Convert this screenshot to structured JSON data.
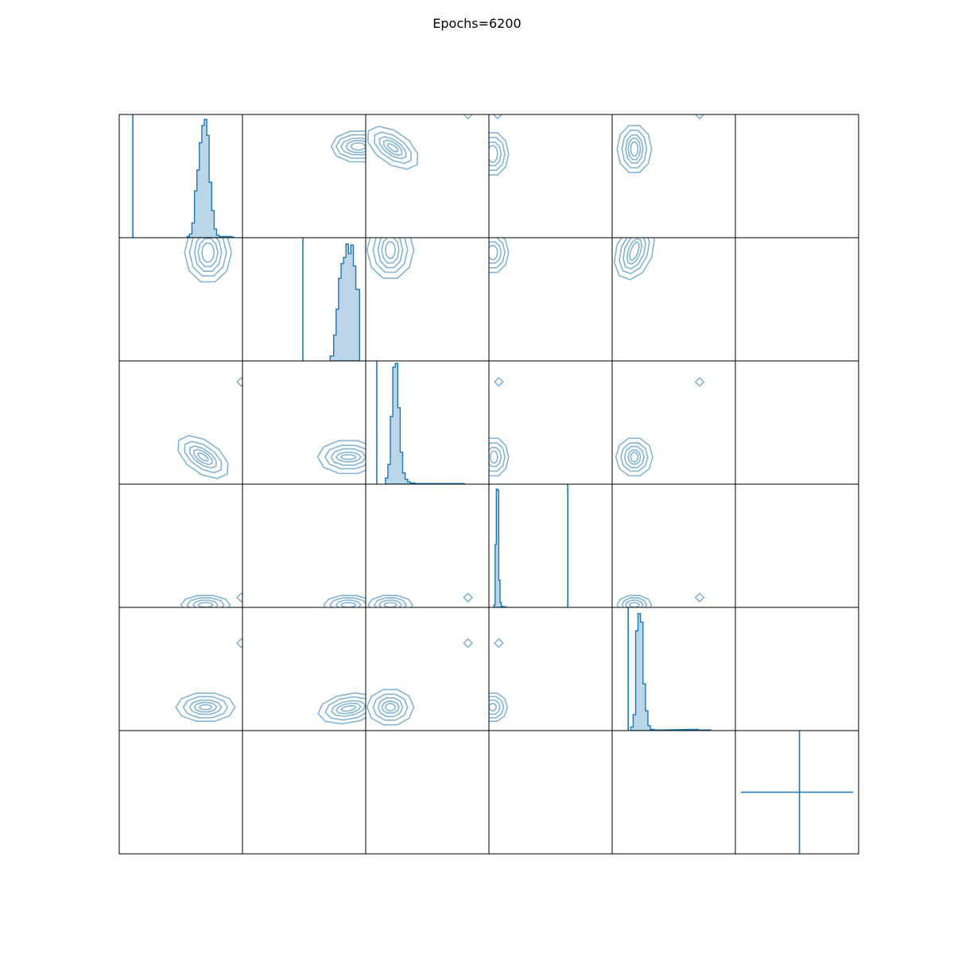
{
  "chart_data": {
    "type": "corner",
    "title": "Epochs=6200",
    "grid": false,
    "n_params": 6,
    "colors": {
      "line": "#1f77b4",
      "fill": "#1f77b4",
      "axes": "#000000"
    },
    "diagonal": [
      {
        "param": 0,
        "xlim": [
          0,
          1
        ],
        "ylim": [
          0,
          1
        ],
        "truth_x": 0.11,
        "bins": [
          [
            0.55,
            0.57,
            0.01
          ],
          [
            0.57,
            0.59,
            0.03
          ],
          [
            0.59,
            0.61,
            0.12
          ],
          [
            0.61,
            0.63,
            0.38
          ],
          [
            0.63,
            0.65,
            0.55
          ],
          [
            0.65,
            0.67,
            0.77
          ],
          [
            0.67,
            0.69,
            0.91
          ],
          [
            0.69,
            0.71,
            0.96
          ],
          [
            0.71,
            0.73,
            0.83
          ],
          [
            0.73,
            0.75,
            0.45
          ],
          [
            0.75,
            0.77,
            0.22
          ],
          [
            0.77,
            0.79,
            0.07
          ],
          [
            0.79,
            0.81,
            0.02
          ],
          [
            0.81,
            0.83,
            0.01
          ],
          [
            0.83,
            0.85,
            0.01
          ],
          [
            0.85,
            0.87,
            0.01
          ],
          [
            0.87,
            0.89,
            0.01
          ],
          [
            0.89,
            0.91,
            0.01
          ],
          [
            0.91,
            0.93,
            0.005
          ]
        ]
      },
      {
        "param": 1,
        "xlim": [
          0,
          1
        ],
        "ylim": [
          0,
          1
        ],
        "truth_x": 0.49,
        "bins": [
          [
            0.71,
            0.74,
            0.04
          ],
          [
            0.74,
            0.76,
            0.21
          ],
          [
            0.76,
            0.78,
            0.42
          ],
          [
            0.78,
            0.8,
            0.67
          ],
          [
            0.8,
            0.82,
            0.79
          ],
          [
            0.82,
            0.84,
            0.84
          ],
          [
            0.84,
            0.86,
            0.95
          ],
          [
            0.86,
            0.88,
            0.87
          ],
          [
            0.88,
            0.9,
            0.94
          ],
          [
            0.9,
            0.92,
            0.77
          ],
          [
            0.92,
            0.95,
            0.58
          ]
        ]
      },
      {
        "param": 2,
        "xlim": [
          0,
          1
        ],
        "ylim": [
          0,
          1
        ],
        "truth_x": 0.09,
        "bins": [
          [
            0.16,
            0.18,
            0.05
          ],
          [
            0.18,
            0.2,
            0.16
          ],
          [
            0.2,
            0.22,
            0.55
          ],
          [
            0.22,
            0.24,
            0.95
          ],
          [
            0.24,
            0.26,
            0.98
          ],
          [
            0.26,
            0.28,
            0.62
          ],
          [
            0.28,
            0.3,
            0.26
          ],
          [
            0.3,
            0.32,
            0.09
          ],
          [
            0.32,
            0.34,
            0.04
          ],
          [
            0.34,
            0.36,
            0.02
          ],
          [
            0.36,
            0.4,
            0.01
          ],
          [
            0.4,
            0.5,
            0.005
          ],
          [
            0.5,
            0.6,
            0.005
          ],
          [
            0.6,
            0.7,
            0.005
          ],
          [
            0.7,
            0.8,
            0.005
          ]
        ]
      },
      {
        "param": 3,
        "xlim": [
          0,
          1
        ],
        "ylim": [
          0,
          1
        ],
        "truth_x": 0.64,
        "bins": [
          [
            0.04,
            0.05,
            0.02
          ],
          [
            0.05,
            0.06,
            0.51
          ],
          [
            0.06,
            0.07,
            0.96
          ],
          [
            0.07,
            0.08,
            0.95
          ],
          [
            0.08,
            0.09,
            0.22
          ],
          [
            0.09,
            0.1,
            0.04
          ],
          [
            0.1,
            0.11,
            0.01
          ],
          [
            0.11,
            0.14,
            0.005
          ]
        ]
      },
      {
        "param": 4,
        "xlim": [
          0,
          1
        ],
        "ylim": [
          0,
          1
        ],
        "truth_x": 0.13,
        "bins": [
          [
            0.15,
            0.17,
            0.03
          ],
          [
            0.17,
            0.19,
            0.13
          ],
          [
            0.19,
            0.21,
            0.81
          ],
          [
            0.21,
            0.23,
            0.95
          ],
          [
            0.23,
            0.25,
            0.88
          ],
          [
            0.25,
            0.27,
            0.38
          ],
          [
            0.27,
            0.29,
            0.16
          ],
          [
            0.29,
            0.31,
            0.04
          ],
          [
            0.31,
            0.34,
            0.01
          ],
          [
            0.34,
            0.4,
            0.005
          ],
          [
            0.65,
            0.7,
            0.01
          ],
          [
            0.7,
            0.8,
            0.005
          ]
        ]
      },
      {
        "param": 5,
        "xlim": [
          0,
          1
        ],
        "ylim": [
          0,
          1
        ],
        "truth_x": 0.52,
        "truth_y": 0.5,
        "bins": []
      }
    ],
    "contours": [
      {
        "row": 0,
        "col": 1,
        "center": [
          0.94,
          0.26
        ],
        "radii": [
          [
            0.06,
            0.03
          ],
          [
            0.1,
            0.05
          ],
          [
            0.14,
            0.07
          ],
          [
            0.18,
            0.1
          ],
          [
            0.22,
            0.13
          ]
        ]
      },
      {
        "row": 0,
        "col": 2,
        "center": [
          0.22,
          0.27
        ],
        "radii": [
          [
            0.05,
            0.02
          ],
          [
            0.09,
            0.04
          ],
          [
            0.13,
            0.06
          ],
          [
            0.18,
            0.09
          ],
          [
            0.24,
            0.13
          ]
        ],
        "angle": 35
      },
      {
        "row": 0,
        "col": 2,
        "center": [
          0.83,
          0.0
        ],
        "radii": [
          [
            0.04,
            0.04
          ]
        ]
      },
      {
        "row": 0,
        "col": 3,
        "center": [
          0.03,
          0.32
        ],
        "radii": [
          [
            0.04,
            0.07
          ],
          [
            0.07,
            0.1
          ],
          [
            0.1,
            0.14
          ],
          [
            0.13,
            0.18
          ]
        ]
      },
      {
        "row": 0,
        "col": 3,
        "center": [
          0.07,
          0.0
        ],
        "radii": [
          [
            0.04,
            0.04
          ]
        ]
      },
      {
        "row": 0,
        "col": 4,
        "center": [
          0.18,
          0.28
        ],
        "radii": [
          [
            0.03,
            0.06
          ],
          [
            0.05,
            0.09
          ],
          [
            0.07,
            0.12
          ],
          [
            0.1,
            0.16
          ],
          [
            0.14,
            0.2
          ]
        ]
      },
      {
        "row": 0,
        "col": 4,
        "center": [
          0.71,
          0.0
        ],
        "radii": [
          [
            0.04,
            0.04
          ]
        ]
      },
      {
        "row": 1,
        "col": 0,
        "center": [
          0.72,
          0.12
        ],
        "radii": [
          [
            0.05,
            0.08
          ],
          [
            0.08,
            0.12
          ],
          [
            0.11,
            0.16
          ],
          [
            0.15,
            0.2
          ],
          [
            0.19,
            0.25
          ]
        ]
      },
      {
        "row": 1,
        "col": 2,
        "center": [
          0.2,
          0.1
        ],
        "radii": [
          [
            0.04,
            0.07
          ],
          [
            0.07,
            0.11
          ],
          [
            0.1,
            0.15
          ],
          [
            0.14,
            0.19
          ],
          [
            0.19,
            0.24
          ]
        ]
      },
      {
        "row": 1,
        "col": 3,
        "center": [
          0.03,
          0.12
        ],
        "radii": [
          [
            0.04,
            0.06
          ],
          [
            0.07,
            0.09
          ],
          [
            0.1,
            0.13
          ],
          [
            0.13,
            0.17
          ]
        ]
      },
      {
        "row": 1,
        "col": 4,
        "center": [
          0.18,
          0.11
        ],
        "radii": [
          [
            0.03,
            0.08
          ],
          [
            0.05,
            0.11
          ],
          [
            0.08,
            0.15
          ],
          [
            0.11,
            0.19
          ],
          [
            0.15,
            0.24
          ]
        ],
        "angle": 20
      },
      {
        "row": 2,
        "col": 0,
        "center": [
          0.68,
          0.78
        ],
        "radii": [
          [
            0.05,
            0.02
          ],
          [
            0.09,
            0.04
          ],
          [
            0.13,
            0.06
          ],
          [
            0.18,
            0.09
          ],
          [
            0.24,
            0.13
          ]
        ],
        "angle": 35
      },
      {
        "row": 2,
        "col": 0,
        "center": [
          0.99,
          0.17
        ],
        "radii": [
          [
            0.04,
            0.04
          ]
        ]
      },
      {
        "row": 2,
        "col": 1,
        "center": [
          0.86,
          0.78
        ],
        "radii": [
          [
            0.06,
            0.02
          ],
          [
            0.1,
            0.04
          ],
          [
            0.14,
            0.07
          ],
          [
            0.19,
            0.1
          ],
          [
            0.25,
            0.14
          ]
        ]
      },
      {
        "row": 2,
        "col": 3,
        "center": [
          0.04,
          0.78
        ],
        "radii": [
          [
            0.03,
            0.05
          ],
          [
            0.06,
            0.08
          ],
          [
            0.09,
            0.12
          ],
          [
            0.12,
            0.16
          ]
        ]
      },
      {
        "row": 2,
        "col": 3,
        "center": [
          0.08,
          0.17
        ],
        "radii": [
          [
            0.04,
            0.04
          ]
        ]
      },
      {
        "row": 2,
        "col": 4,
        "center": [
          0.18,
          0.78
        ],
        "radii": [
          [
            0.03,
            0.04
          ],
          [
            0.05,
            0.06
          ],
          [
            0.08,
            0.09
          ],
          [
            0.11,
            0.12
          ],
          [
            0.15,
            0.16
          ]
        ]
      },
      {
        "row": 2,
        "col": 4,
        "center": [
          0.71,
          0.17
        ],
        "radii": [
          [
            0.04,
            0.04
          ]
        ]
      },
      {
        "row": 3,
        "col": 0,
        "center": [
          0.7,
          0.98
        ],
        "radii": [
          [
            0.06,
            0.02
          ],
          [
            0.1,
            0.04
          ],
          [
            0.15,
            0.06
          ],
          [
            0.2,
            0.08
          ]
        ]
      },
      {
        "row": 3,
        "col": 0,
        "center": [
          0.99,
          0.92
        ],
        "radii": [
          [
            0.04,
            0.04
          ]
        ]
      },
      {
        "row": 3,
        "col": 1,
        "center": [
          0.86,
          0.98
        ],
        "radii": [
          [
            0.06,
            0.02
          ],
          [
            0.1,
            0.04
          ],
          [
            0.15,
            0.06
          ],
          [
            0.2,
            0.08
          ]
        ]
      },
      {
        "row": 3,
        "col": 2,
        "center": [
          0.2,
          0.98
        ],
        "radii": [
          [
            0.05,
            0.02
          ],
          [
            0.09,
            0.04
          ],
          [
            0.13,
            0.06
          ],
          [
            0.18,
            0.08
          ]
        ]
      },
      {
        "row": 3,
        "col": 2,
        "center": [
          0.83,
          0.92
        ],
        "radii": [
          [
            0.04,
            0.04
          ]
        ]
      },
      {
        "row": 3,
        "col": 4,
        "center": [
          0.18,
          0.98
        ],
        "radii": [
          [
            0.04,
            0.02
          ],
          [
            0.07,
            0.04
          ],
          [
            0.1,
            0.06
          ],
          [
            0.14,
            0.08
          ]
        ]
      },
      {
        "row": 3,
        "col": 4,
        "center": [
          0.71,
          0.92
        ],
        "radii": [
          [
            0.04,
            0.04
          ]
        ]
      },
      {
        "row": 4,
        "col": 0,
        "center": [
          0.7,
          0.81
        ],
        "radii": [
          [
            0.05,
            0.02
          ],
          [
            0.09,
            0.04
          ],
          [
            0.13,
            0.06
          ],
          [
            0.18,
            0.09
          ],
          [
            0.24,
            0.12
          ]
        ]
      },
      {
        "row": 4,
        "col": 0,
        "center": [
          0.99,
          0.29
        ],
        "radii": [
          [
            0.04,
            0.04
          ]
        ]
      },
      {
        "row": 4,
        "col": 1,
        "center": [
          0.86,
          0.82
        ],
        "radii": [
          [
            0.06,
            0.02
          ],
          [
            0.1,
            0.04
          ],
          [
            0.14,
            0.06
          ],
          [
            0.19,
            0.09
          ],
          [
            0.25,
            0.12
          ]
        ],
        "angle": -10
      },
      {
        "row": 4,
        "col": 2,
        "center": [
          0.2,
          0.81
        ],
        "radii": [
          [
            0.04,
            0.03
          ],
          [
            0.07,
            0.05
          ],
          [
            0.1,
            0.08
          ],
          [
            0.14,
            0.11
          ],
          [
            0.19,
            0.15
          ]
        ]
      },
      {
        "row": 4,
        "col": 2,
        "center": [
          0.83,
          0.29
        ],
        "radii": [
          [
            0.04,
            0.04
          ]
        ]
      },
      {
        "row": 4,
        "col": 3,
        "center": [
          0.03,
          0.81
        ],
        "radii": [
          [
            0.03,
            0.03
          ],
          [
            0.06,
            0.06
          ],
          [
            0.09,
            0.09
          ],
          [
            0.12,
            0.12
          ]
        ]
      },
      {
        "row": 4,
        "col": 3,
        "center": [
          0.08,
          0.29
        ],
        "radii": [
          [
            0.04,
            0.04
          ]
        ]
      }
    ]
  }
}
